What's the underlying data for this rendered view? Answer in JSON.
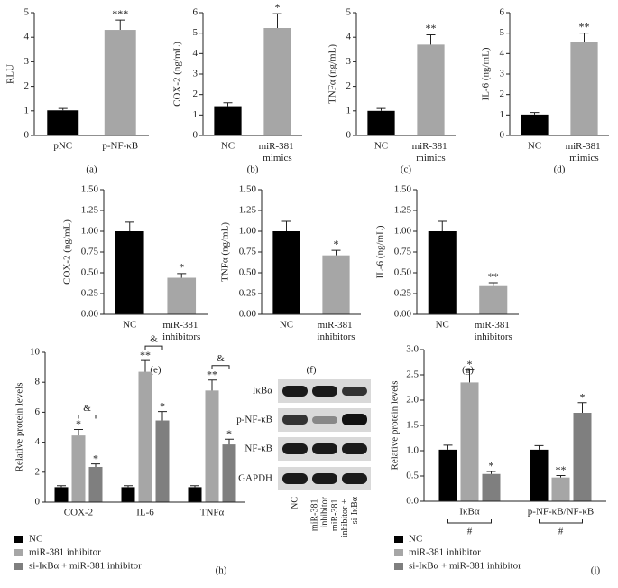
{
  "chart_data": [
    {
      "type": "bar",
      "caption": "(a)",
      "ylabel": "RLU",
      "categories": [
        "pNC",
        "p-NF-κB"
      ],
      "values": [
        1.02,
        4.3
      ],
      "errors": [
        0.08,
        0.4
      ],
      "colors": [
        "#000000",
        "#a6a6a6"
      ],
      "significance": [
        null,
        "***"
      ],
      "ylim": [
        0,
        5
      ],
      "yticks": [
        0,
        1,
        2,
        3,
        4,
        5
      ]
    },
    {
      "type": "bar",
      "caption": "(b)",
      "ylabel": "COX-2 (ng/mL)",
      "categories": [
        "NC",
        "miR-381 mimics"
      ],
      "values": [
        1.43,
        5.25
      ],
      "errors": [
        0.17,
        0.7
      ],
      "colors": [
        "#000000",
        "#a6a6a6"
      ],
      "significance": [
        null,
        "*"
      ],
      "ylim": [
        0,
        6
      ],
      "yticks": [
        0,
        1,
        2,
        3,
        4,
        5,
        6
      ]
    },
    {
      "type": "bar",
      "caption": "(c)",
      "ylabel": "TNFα (ng/mL)",
      "categories": [
        "NC",
        "miR-381 mimics"
      ],
      "values": [
        1.0,
        3.7
      ],
      "errors": [
        0.1,
        0.4
      ],
      "colors": [
        "#000000",
        "#a6a6a6"
      ],
      "significance": [
        null,
        "**"
      ],
      "ylim": [
        0,
        5
      ],
      "yticks": [
        0,
        1,
        2,
        3,
        4,
        5
      ]
    },
    {
      "type": "bar",
      "caption": "(d)",
      "ylabel": "IL-6 (ng/mL)",
      "categories": [
        "NC",
        "miR-381 mimics"
      ],
      "values": [
        1.02,
        4.55
      ],
      "errors": [
        0.1,
        0.45
      ],
      "colors": [
        "#000000",
        "#a6a6a6"
      ],
      "significance": [
        null,
        "**"
      ],
      "ylim": [
        0,
        6
      ],
      "yticks": [
        0,
        1,
        2,
        3,
        4,
        5,
        6
      ]
    },
    {
      "type": "bar",
      "caption": "(e)",
      "ylabel": "COX-2 (ng/mL)",
      "categories": [
        "NC",
        "miR-381 inhibitors"
      ],
      "values": [
        1.0,
        0.44
      ],
      "errors": [
        0.11,
        0.05
      ],
      "colors": [
        "#000000",
        "#a6a6a6"
      ],
      "significance": [
        null,
        "*"
      ],
      "ylim": [
        0,
        1.5
      ],
      "yticks": [
        {
          "value": 0,
          "label": "0.00"
        },
        {
          "value": 0.25,
          "label": "0.25"
        },
        {
          "value": 0.5,
          "label": "0.50"
        },
        {
          "value": 0.75,
          "label": "0.75"
        },
        {
          "value": 1,
          "label": "1.00"
        },
        {
          "value": 1.25,
          "label": "1.25"
        },
        {
          "value": 1.5,
          "label": "1.50"
        }
      ]
    },
    {
      "type": "bar",
      "caption": "(f)",
      "ylabel": "TNFα (ng/mL)",
      "categories": [
        "NC",
        "miR-381 inhibitors"
      ],
      "values": [
        1.0,
        0.71
      ],
      "errors": [
        0.12,
        0.06
      ],
      "colors": [
        "#000000",
        "#a6a6a6"
      ],
      "significance": [
        null,
        "*"
      ],
      "ylim": [
        0,
        1.5
      ],
      "yticks": [
        {
          "value": 0,
          "label": "0.00"
        },
        {
          "value": 0.25,
          "label": "0.25"
        },
        {
          "value": 0.5,
          "label": "0.50"
        },
        {
          "value": 0.75,
          "label": "0.75"
        },
        {
          "value": 1,
          "label": "1.00"
        },
        {
          "value": 1.25,
          "label": "1.25"
        },
        {
          "value": 1.5,
          "label": "1.50"
        }
      ]
    },
    {
      "type": "bar",
      "caption": "(g)",
      "ylabel": "IL-6 (ng/mL)",
      "categories": [
        "NC",
        "miR-381 inhibitors"
      ],
      "values": [
        1.0,
        0.34
      ],
      "errors": [
        0.12,
        0.04
      ],
      "colors": [
        "#000000",
        "#a6a6a6"
      ],
      "significance": [
        null,
        "**"
      ],
      "ylim": [
        0,
        1.5
      ],
      "yticks": [
        {
          "value": 0,
          "label": "0.00"
        },
        {
          "value": 0.25,
          "label": "0.25"
        },
        {
          "value": 0.5,
          "label": "0.50"
        },
        {
          "value": 0.75,
          "label": "0.75"
        },
        {
          "value": 1,
          "label": "1.00"
        },
        {
          "value": 1.25,
          "label": "1.25"
        },
        {
          "value": 1.5,
          "label": "1.50"
        }
      ]
    },
    {
      "type": "grouped_bar",
      "caption": "(h)",
      "ylabel": "Relative protein levels",
      "categories": [
        "COX-2",
        "IL-6",
        "TNFα"
      ],
      "series": [
        {
          "name": "NC",
          "color": "#000000",
          "values": [
            1,
            1,
            1
          ],
          "errors": [
            0.1,
            0.1,
            0.1
          ],
          "significance": [
            null,
            null,
            null
          ]
        },
        {
          "name": "miR-381 inhibitor",
          "color": "#a6a6a6",
          "values": [
            4.45,
            8.7,
            7.45
          ],
          "errors": [
            0.4,
            0.75,
            0.7
          ],
          "significance": [
            "*",
            "**",
            "**"
          ]
        },
        {
          "name": "si-IκBα + miR-381 inhibitor",
          "color": "#7f7f7f",
          "values": [
            2.35,
            5.45,
            3.85
          ],
          "errors": [
            0.2,
            0.6,
            0.35
          ],
          "significance": [
            "*",
            "*",
            "*"
          ]
        }
      ],
      "brackets": [
        "&",
        "&",
        "&"
      ],
      "bracket_position": "above",
      "ylim": [
        0,
        10
      ],
      "yticks": [
        0,
        2,
        4,
        6,
        8,
        10
      ]
    },
    {
      "type": "grouped_bar",
      "caption": "(i)",
      "ylabel": "Relative protein levels",
      "categories": [
        "IκBα",
        "p-NF-κB/NF-κB"
      ],
      "series": [
        {
          "name": "NC",
          "color": "#000000",
          "values": [
            1.02,
            1.02
          ],
          "errors": [
            0.09,
            0.08
          ],
          "significance": [
            null,
            null
          ]
        },
        {
          "name": "miR-381 inhibitor",
          "color": "#a6a6a6",
          "values": [
            2.35,
            0.47
          ],
          "errors": [
            0.25,
            0.04
          ],
          "significance": [
            "*",
            "**"
          ]
        },
        {
          "name": "si-IκBα + miR-381 inhibitor",
          "color": "#7f7f7f",
          "values": [
            0.54,
            1.75
          ],
          "errors": [
            0.05,
            0.2
          ],
          "significance": [
            "*",
            "*"
          ]
        }
      ],
      "brackets": [
        "#",
        "#"
      ],
      "bracket_position": "below",
      "ylim": [
        0,
        3
      ],
      "yticks": [
        {
          "value": 0,
          "label": "0.0"
        },
        {
          "value": 0.5,
          "label": "0.5"
        },
        {
          "value": 1,
          "label": "1.0"
        },
        {
          "value": 1.5,
          "label": "1.5"
        },
        {
          "value": 2,
          "label": "2.0"
        },
        {
          "value": 2.5,
          "label": "2.5"
        },
        {
          "value": 3,
          "label": "3.0"
        }
      ]
    }
  ],
  "western_blot": {
    "proteins": [
      "IκBα",
      "p-NF-κB",
      "NF-κB",
      "GAPDH"
    ],
    "lanes": [
      "NC",
      "miR-381 inhibitor",
      "miR-381 inhibitor + si-IκBα"
    ]
  }
}
